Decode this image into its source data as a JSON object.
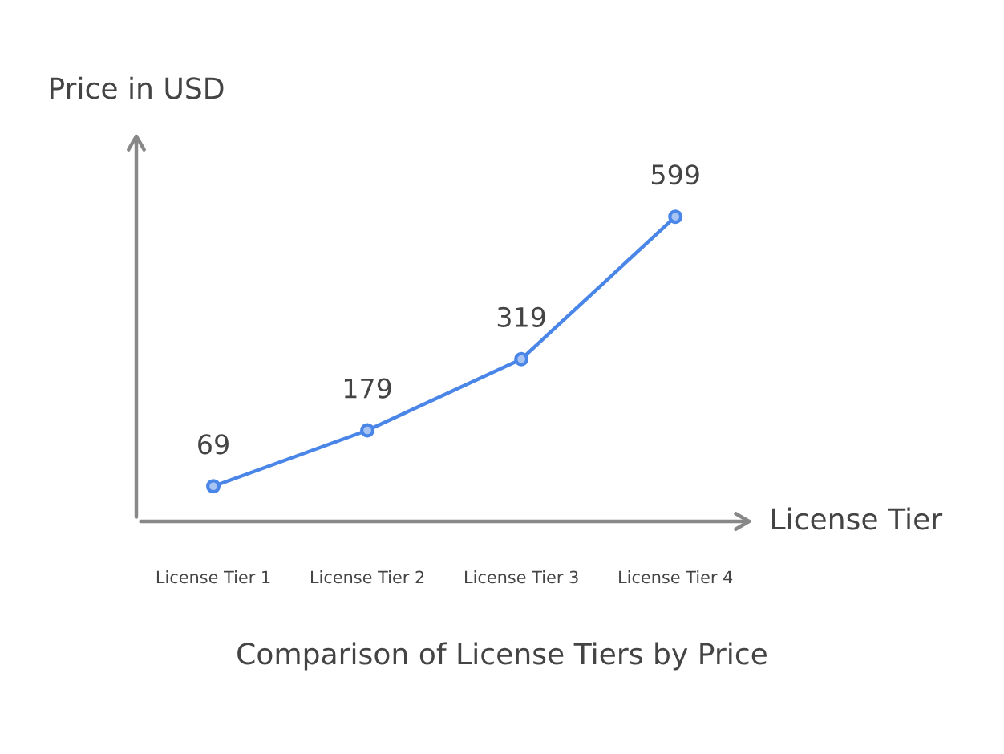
{
  "chart_data": {
    "type": "line",
    "title": "Comparison of License Tiers by Price",
    "xlabel": "License Tier",
    "ylabel": "Price in USD",
    "categories": [
      "License Tier 1",
      "License Tier 2",
      "License Tier 3",
      "License Tier 4"
    ],
    "series": [
      {
        "color": "#4a86e8",
        "values": [
          69,
          179,
          319,
          599
        ]
      }
    ],
    "tick_labels": "x",
    "data_labels": true,
    "marker": "circle",
    "line_style": "solid",
    "grid": false,
    "legend": false
  }
}
